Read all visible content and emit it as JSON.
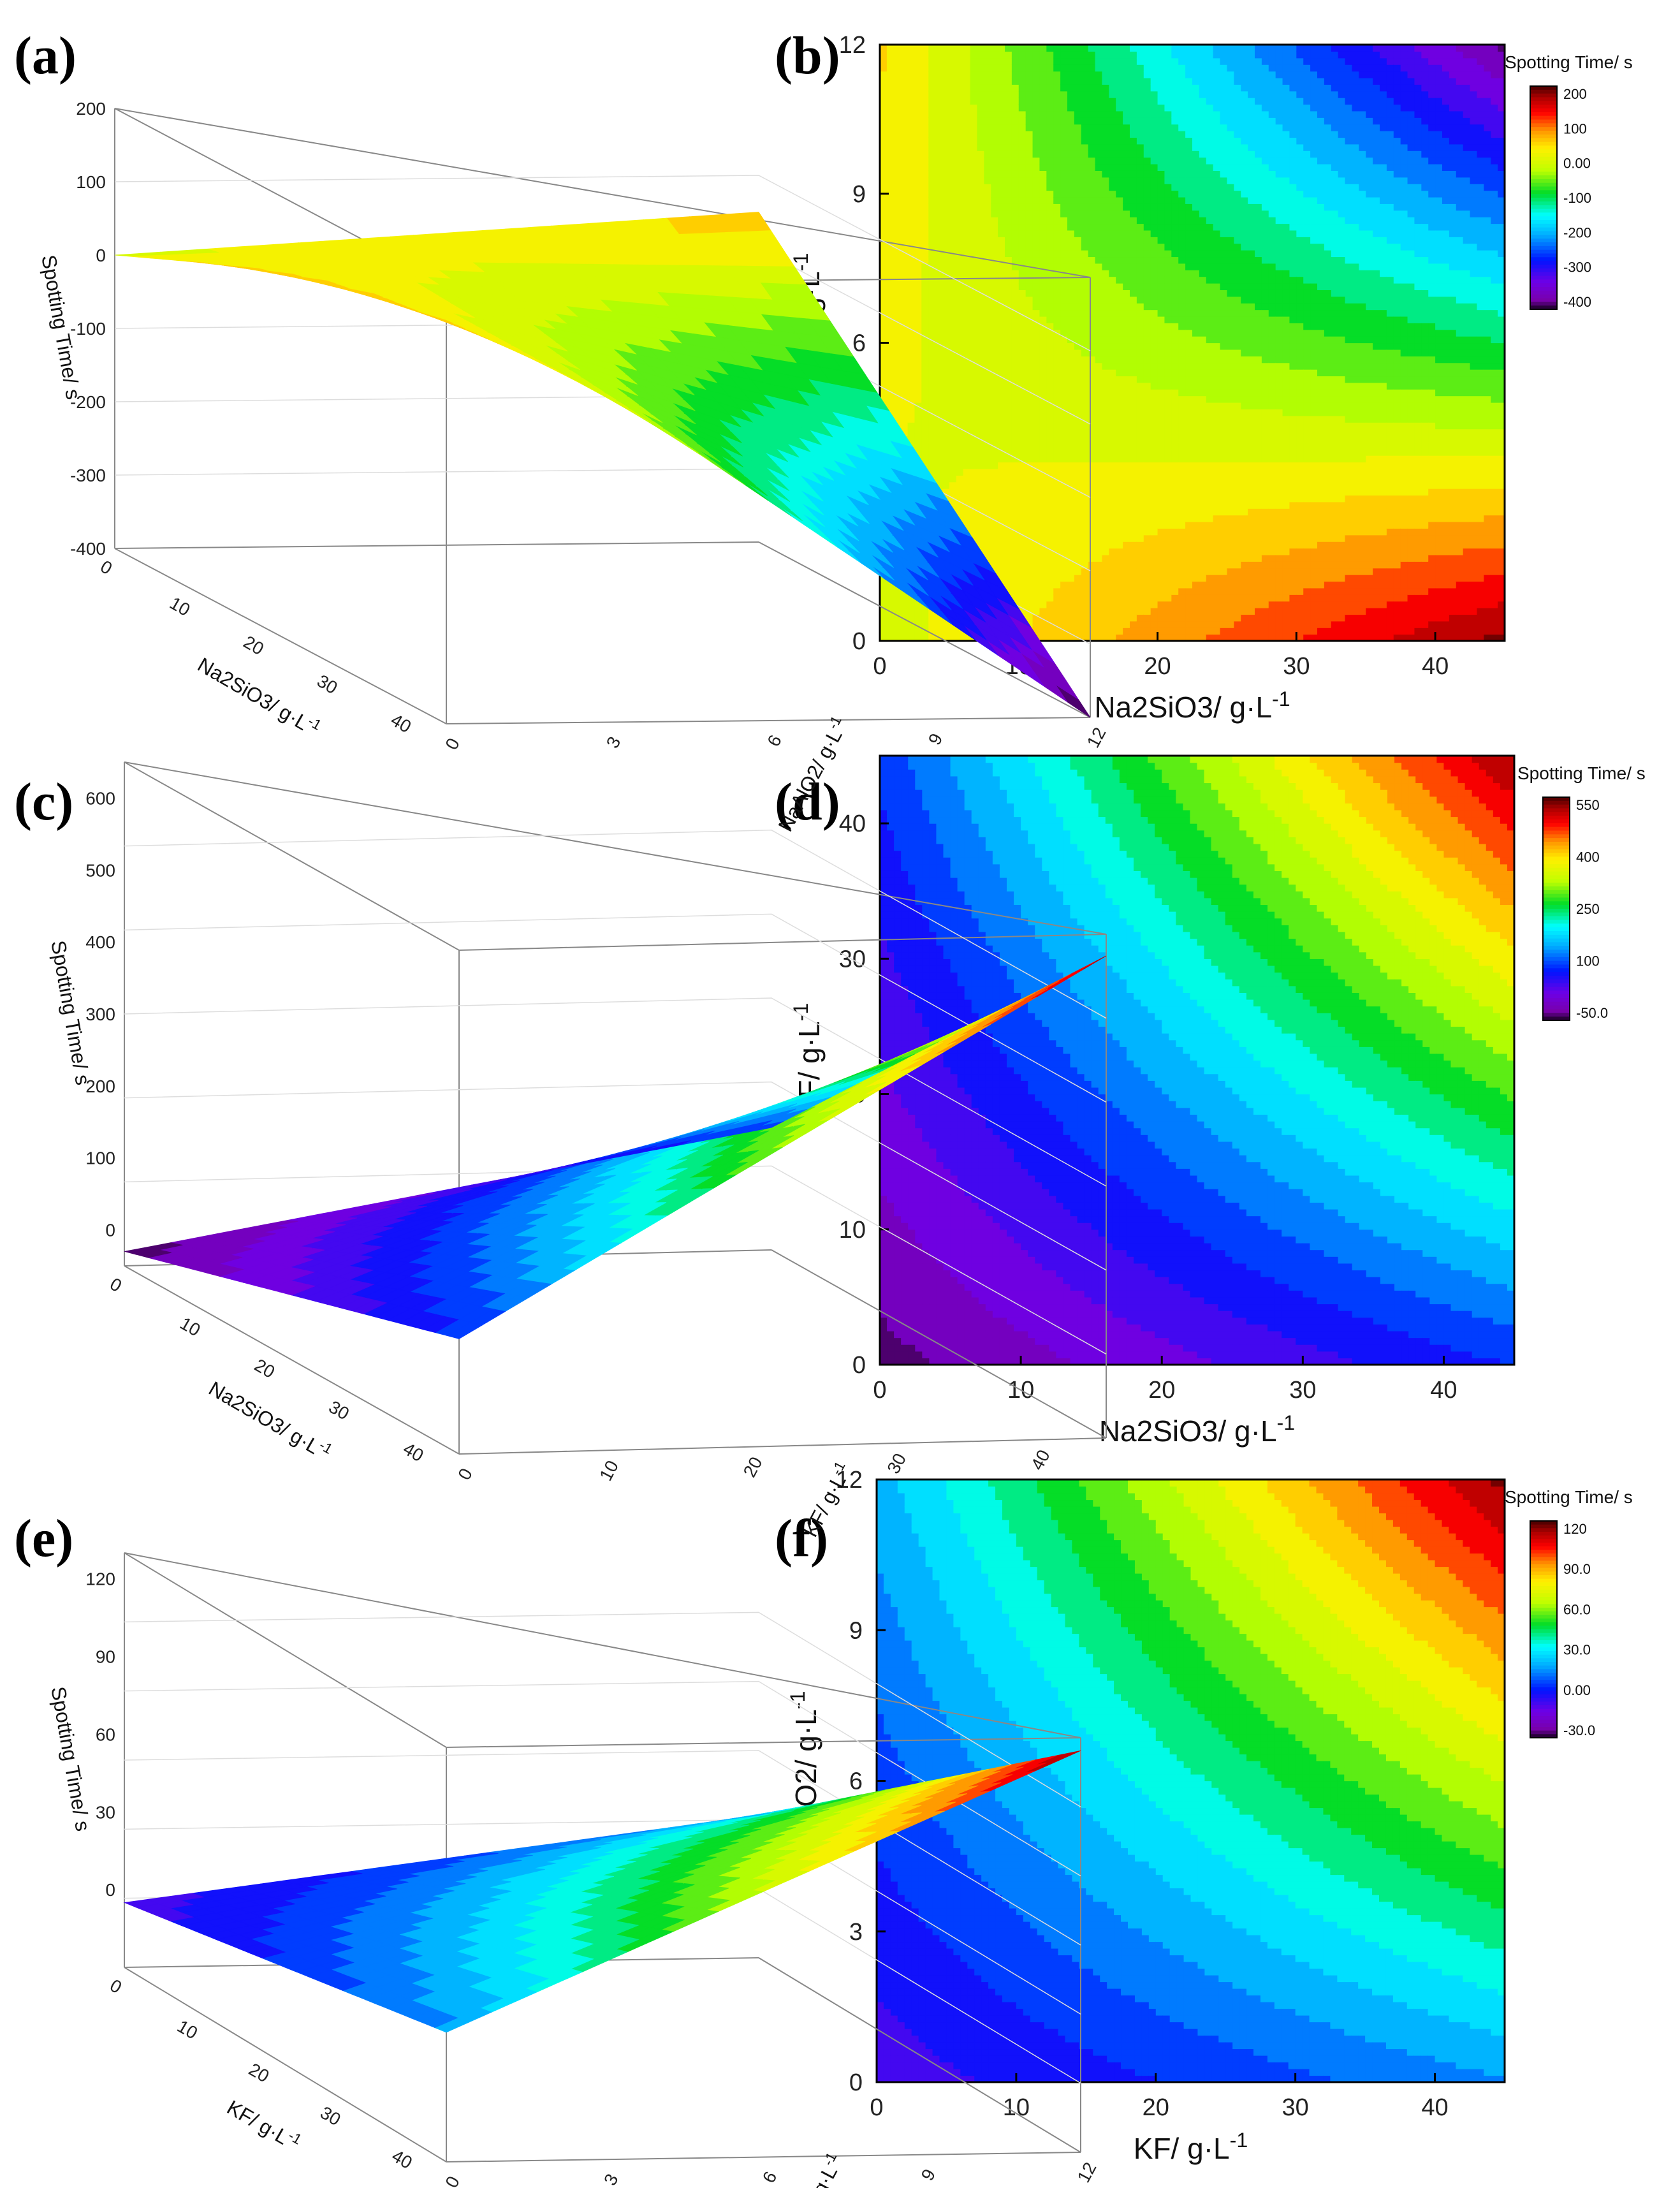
{
  "chart_data": [
    {
      "id": "a",
      "type": "surface3d",
      "label": "(a)",
      "zlabel": "Spotting Time/ s",
      "xlabel": "Na2SiO3/ g·L-1",
      "ylabel": "NaAlO2/ g·L-1",
      "x_ticks": [
        "0",
        "10",
        "20",
        "30",
        "40"
      ],
      "y_ticks": [
        "0",
        "3",
        "6",
        "9",
        "12"
      ],
      "z_ticks": [
        "-400",
        "-300",
        "-200",
        "-100",
        "0",
        "100",
        "200"
      ],
      "xlim": [
        0,
        45
      ],
      "ylim": [
        0,
        12
      ],
      "zlim": [
        -400,
        200
      ],
      "corners": {
        "x0y0": 0,
        "x45y0": 200,
        "x0y12": 50,
        "x45y12": -400
      }
    },
    {
      "id": "b",
      "type": "contour",
      "label": "(b)",
      "xlabel": "Na2SiO3/ g·L-1",
      "ylabel": "NaAlO2/ g·L-1",
      "x_ticks": [
        "0",
        "10",
        "20",
        "30",
        "40"
      ],
      "y_ticks": [
        "0",
        "3",
        "6",
        "9",
        "12"
      ],
      "xlim": [
        0,
        45
      ],
      "ylim": [
        0,
        12
      ],
      "colorbar_title": "Spotting Time/ s",
      "colorbar_ticks": [
        "200",
        "100",
        "0.00",
        "-100",
        "-200",
        "-300",
        "-400"
      ],
      "zlim": [
        -420,
        220
      ],
      "corners": {
        "x0y0": 0,
        "x45y0": 200,
        "x0y12": 50,
        "x45y12": -400
      }
    },
    {
      "id": "c",
      "type": "surface3d",
      "label": "(c)",
      "zlabel": "Spotting Time/ s",
      "xlabel": "Na2SiO3/ g·L-1",
      "ylabel": "KF/ g·L-1",
      "x_ticks": [
        "0",
        "10",
        "20",
        "30",
        "40"
      ],
      "y_ticks": [
        "0",
        "10",
        "20",
        "30",
        "40"
      ],
      "z_ticks": [
        "0",
        "100",
        "200",
        "300",
        "400",
        "500",
        "600"
      ],
      "xlim": [
        0,
        45
      ],
      "ylim": [
        0,
        45
      ],
      "zlim": [
        -50,
        650
      ],
      "corners": {
        "x0y0": -30,
        "x45y0": 110,
        "x0y45": 120,
        "x45y45": 620
      }
    },
    {
      "id": "d",
      "type": "contour",
      "label": "(d)",
      "xlabel": "Na2SiO3/ g·L-1",
      "ylabel": "KF/ g·L-1",
      "x_ticks": [
        "0",
        "10",
        "20",
        "30",
        "40"
      ],
      "y_ticks": [
        "0",
        "10",
        "20",
        "30",
        "40"
      ],
      "xlim": [
        0,
        45
      ],
      "ylim": [
        0,
        45
      ],
      "colorbar_title": "Spotting Time/ s",
      "colorbar_ticks": [
        "550",
        "400",
        "250",
        "100",
        "-50.0"
      ],
      "zlim": [
        -50,
        650
      ],
      "corners": {
        "x0y0": -30,
        "x45y0": 110,
        "x0y45": 120,
        "x45y45": 620
      }
    },
    {
      "id": "e",
      "type": "surface3d",
      "label": "(e)",
      "zlabel": "Spotting Time/ s",
      "xlabel": "KF/ g·L-1",
      "ylabel": "NaAlO2/ g·L-1",
      "x_ticks": [
        "0",
        "10",
        "20",
        "30",
        "40"
      ],
      "y_ticks": [
        "0",
        "3",
        "6",
        "9",
        "12"
      ],
      "z_ticks": [
        "0",
        "30",
        "60",
        "90",
        "120"
      ],
      "xlim": [
        0,
        45
      ],
      "ylim": [
        0,
        12
      ],
      "zlim": [
        -30,
        130
      ],
      "corners": {
        "x0y0": -5,
        "x45y0": 20,
        "x0y12": 25,
        "x45y12": 125
      }
    },
    {
      "id": "f",
      "type": "contour",
      "label": "(f)",
      "xlabel": "KF/ g·L-1",
      "ylabel": "NaAlO2/ g·L-1",
      "x_ticks": [
        "0",
        "10",
        "20",
        "30",
        "40"
      ],
      "y_ticks": [
        "0",
        "3",
        "6",
        "9",
        "12"
      ],
      "xlim": [
        0,
        45
      ],
      "ylim": [
        0,
        12
      ],
      "colorbar_title": "Spotting Time/ s",
      "colorbar_ticks": [
        "120",
        "90.0",
        "60.0",
        "30.0",
        "0.00",
        "-30.0"
      ],
      "zlim": [
        -30,
        130
      ],
      "corners": {
        "x0y0": -5,
        "x45y0": 20,
        "x0y12": 25,
        "x45y12": 125
      }
    }
  ]
}
